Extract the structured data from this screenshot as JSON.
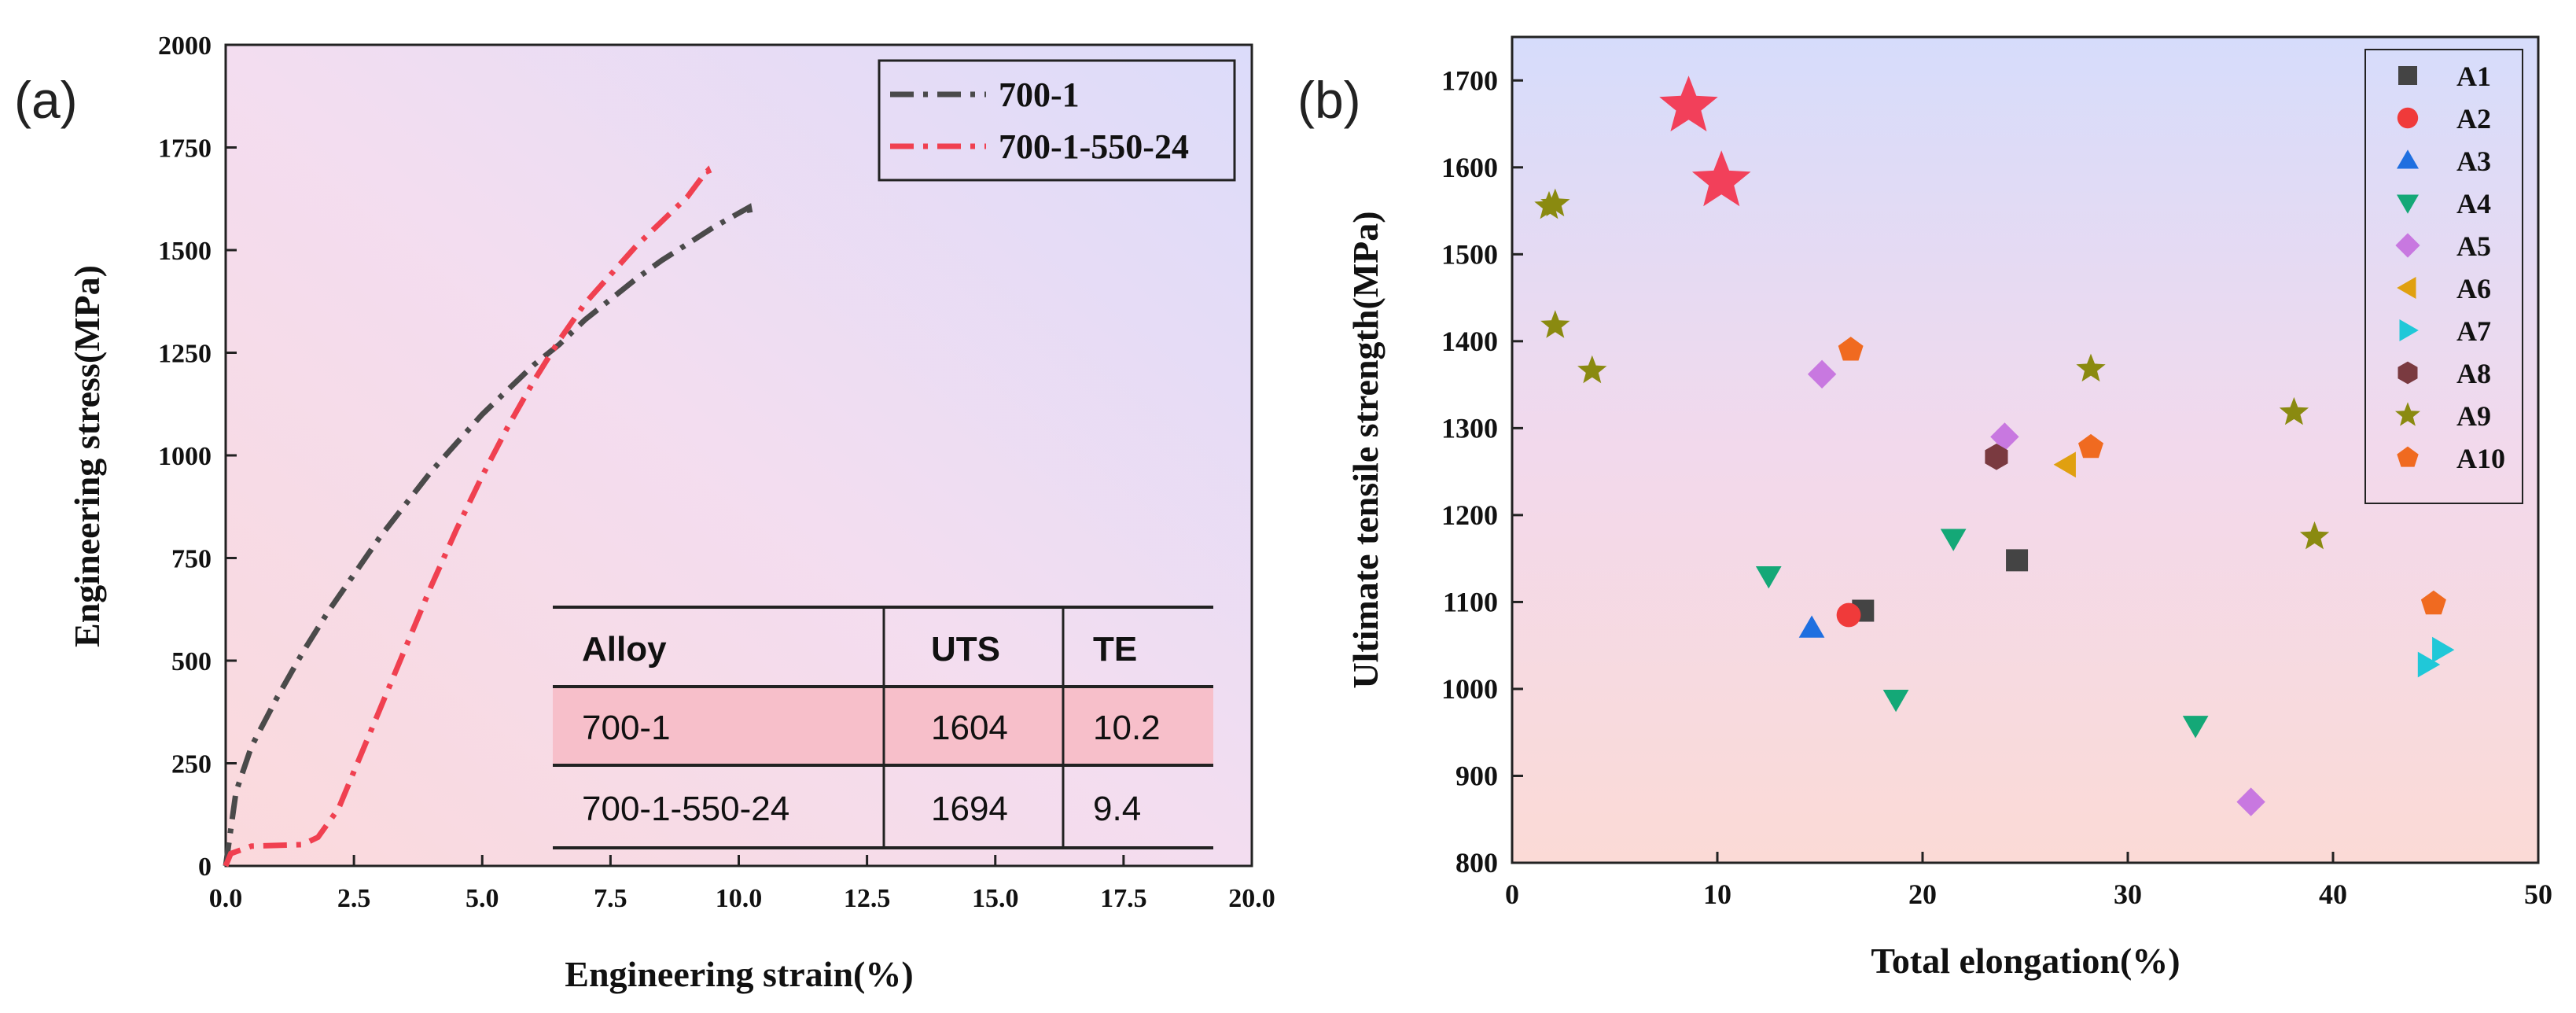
{
  "chart_data": [
    {
      "panel_label": "(a)",
      "type": "line",
      "xlabel": "Engineering strain(%)",
      "ylabel": "Engineering stress(MPa)",
      "xlim": [
        0,
        20
      ],
      "ylim": [
        0,
        2000
      ],
      "xticks": [
        "0.0",
        "2.5",
        "5.0",
        "7.5",
        "10.0",
        "12.5",
        "15.0",
        "17.5",
        "20.0"
      ],
      "yticks": [
        "0",
        "250",
        "500",
        "750",
        "1000",
        "1250",
        "1500",
        "1750",
        "2000"
      ],
      "legend_position": "top-right",
      "series": [
        {
          "name": "700-1",
          "color": "#4a4a4a",
          "style": "dash-dot",
          "x": [
            0,
            0.2,
            0.5,
            1.0,
            1.5,
            2.0,
            2.5,
            3.0,
            3.5,
            4.0,
            4.5,
            5.0,
            5.5,
            6.0,
            6.5,
            7.0,
            7.5,
            8.0,
            8.5,
            9.0,
            9.5,
            10.0,
            10.2,
            10.25
          ],
          "y": [
            0,
            180,
            290,
            410,
            520,
            620,
            710,
            800,
            880,
            960,
            1030,
            1100,
            1160,
            1220,
            1270,
            1330,
            1380,
            1430,
            1475,
            1515,
            1555,
            1590,
            1604,
            1570
          ]
        },
        {
          "name": "700-1-550-24",
          "color": "#f04050",
          "style": "dash-dot",
          "x": [
            0,
            0.1,
            0.5,
            1.0,
            1.5,
            1.8,
            2.2,
            2.5,
            3.0,
            3.5,
            4.0,
            4.5,
            5.0,
            5.5,
            6.0,
            6.5,
            7.0,
            7.5,
            8.0,
            8.5,
            9.0,
            9.3,
            9.4,
            9.45
          ],
          "y": [
            0,
            30,
            48,
            50,
            52,
            70,
            140,
            230,
            380,
            530,
            680,
            820,
            950,
            1070,
            1180,
            1280,
            1370,
            1440,
            1510,
            1570,
            1630,
            1680,
            1694,
            1680
          ]
        }
      ],
      "table": {
        "headers": [
          "Alloy",
          "UTS",
          "TE"
        ],
        "rows": [
          [
            "700-1",
            "1604",
            "10.2"
          ],
          [
            "700-1-550-24",
            "1694",
            "9.4"
          ]
        ]
      }
    },
    {
      "panel_label": "(b)",
      "type": "scatter",
      "xlabel": "Total elongation(%)",
      "ylabel": "Ultimate tensile strength(MPa)",
      "xlim": [
        0,
        50
      ],
      "ylim": [
        800,
        1750
      ],
      "xticks": [
        "0",
        "10",
        "20",
        "30",
        "40",
        "50"
      ],
      "yticks": [
        "800",
        "900",
        "1000",
        "1100",
        "1200",
        "1300",
        "1400",
        "1500",
        "1600",
        "1700"
      ],
      "legend_position": "top-right",
      "series": [
        {
          "name": "A1",
          "color": "#444444",
          "marker": "square",
          "x": [
            17.1,
            24.6
          ],
          "y": [
            1090,
            1148
          ]
        },
        {
          "name": "A2",
          "color": "#f03a3a",
          "marker": "circle",
          "x": [
            16.4
          ],
          "y": [
            1085
          ]
        },
        {
          "name": "A3",
          "color": "#1f6fe0",
          "marker": "triangle-up",
          "x": [
            14.6
          ],
          "y": [
            1070
          ]
        },
        {
          "name": "A4",
          "color": "#14a877",
          "marker": "triangle-down",
          "x": [
            12.5,
            18.7,
            21.5,
            33.3
          ],
          "y": [
            1130,
            988,
            1173,
            958
          ]
        },
        {
          "name": "A5",
          "color": "#c878e0",
          "marker": "diamond",
          "x": [
            15.1,
            24.0,
            36.0
          ],
          "y": [
            1362,
            1290,
            870
          ]
        },
        {
          "name": "A6",
          "color": "#e0a010",
          "marker": "triangle-left",
          "x": [
            27.0
          ],
          "y": [
            1258
          ]
        },
        {
          "name": "A7",
          "color": "#20c8d8",
          "marker": "triangle-right",
          "x": [
            44.6,
            45.3
          ],
          "y": [
            1028,
            1045
          ]
        },
        {
          "name": "A8",
          "color": "#7a3a40",
          "marker": "hexagon",
          "x": [
            23.6
          ],
          "y": [
            1267
          ]
        },
        {
          "name": "A9",
          "color": "#8a8a10",
          "marker": "star",
          "x": [
            1.8,
            2.1,
            2.1,
            3.9,
            28.2,
            38.1,
            39.1
          ],
          "y": [
            1555,
            1558,
            1418,
            1366,
            1368,
            1318,
            1175
          ]
        },
        {
          "name": "A10",
          "color": "#f06a20",
          "marker": "pentagon",
          "x": [
            16.5,
            28.2,
            44.9
          ],
          "y": [
            1390,
            1278,
            1098
          ]
        }
      ],
      "highlight": {
        "color": "#f2405a",
        "marker": "star",
        "x": [
          8.6,
          10.2
        ],
        "y": [
          1670,
          1584
        ]
      }
    }
  ]
}
